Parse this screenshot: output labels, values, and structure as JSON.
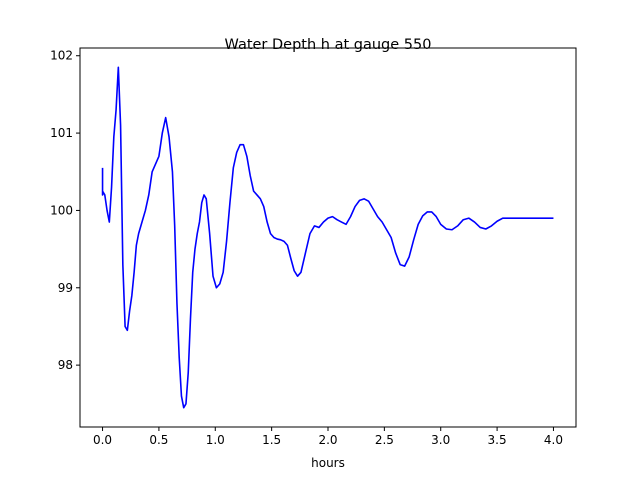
{
  "chart_data": {
    "type": "line",
    "title": "Water Depth h at gauge 550",
    "xlabel": "hours",
    "ylabel": "",
    "xlim": [
      -0.2,
      4.2
    ],
    "ylim": [
      97.2,
      102.1
    ],
    "xticks": [
      0.0,
      0.5,
      1.0,
      1.5,
      2.0,
      2.5,
      3.0,
      3.5,
      4.0
    ],
    "xtick_labels": [
      "0.0",
      "0.5",
      "1.0",
      "1.5",
      "2.0",
      "2.5",
      "3.0",
      "3.5",
      "4.0"
    ],
    "yticks": [
      98,
      99,
      100,
      101,
      102
    ],
    "ytick_labels": [
      "98",
      "99",
      "100",
      "101",
      "102"
    ],
    "grid": false,
    "series": [
      {
        "color": "#0000ff",
        "x": [
          0.0,
          0.0,
          0.0,
          0.02,
          0.04,
          0.06,
          0.08,
          0.1,
          0.12,
          0.14,
          0.16,
          0.18,
          0.2,
          0.22,
          0.24,
          0.26,
          0.28,
          0.3,
          0.32,
          0.35,
          0.38,
          0.41,
          0.44,
          0.47,
          0.5,
          0.53,
          0.56,
          0.59,
          0.62,
          0.64,
          0.66,
          0.68,
          0.7,
          0.72,
          0.74,
          0.76,
          0.78,
          0.8,
          0.82,
          0.84,
          0.86,
          0.88,
          0.9,
          0.92,
          0.95,
          0.98,
          1.01,
          1.04,
          1.07,
          1.1,
          1.13,
          1.16,
          1.19,
          1.22,
          1.25,
          1.28,
          1.31,
          1.34,
          1.37,
          1.4,
          1.43,
          1.46,
          1.49,
          1.52,
          1.55,
          1.58,
          1.61,
          1.64,
          1.67,
          1.7,
          1.73,
          1.76,
          1.8,
          1.84,
          1.88,
          1.92,
          1.96,
          2.0,
          2.04,
          2.08,
          2.12,
          2.16,
          2.2,
          2.24,
          2.28,
          2.32,
          2.36,
          2.4,
          2.44,
          2.48,
          2.52,
          2.56,
          2.6,
          2.64,
          2.68,
          2.72,
          2.76,
          2.8,
          2.84,
          2.88,
          2.92,
          2.96,
          3.0,
          3.05,
          3.1,
          3.15,
          3.2,
          3.25,
          3.3,
          3.35,
          3.4,
          3.45,
          3.5,
          3.55,
          3.6,
          3.65,
          3.7,
          3.75,
          3.8,
          3.85,
          3.9,
          3.95,
          4.0
        ],
        "y": [
          100.55,
          100.2,
          100.25,
          100.2,
          100.0,
          99.85,
          100.3,
          100.95,
          101.3,
          101.85,
          101.1,
          99.3,
          98.5,
          98.45,
          98.7,
          98.9,
          99.2,
          99.55,
          99.7,
          99.85,
          100.0,
          100.2,
          100.5,
          100.6,
          100.7,
          101.0,
          101.2,
          100.95,
          100.5,
          99.8,
          98.8,
          98.1,
          97.6,
          97.45,
          97.5,
          97.9,
          98.6,
          99.2,
          99.5,
          99.7,
          99.85,
          100.1,
          100.2,
          100.15,
          99.7,
          99.15,
          99.0,
          99.05,
          99.2,
          99.6,
          100.1,
          100.55,
          100.75,
          100.85,
          100.85,
          100.7,
          100.45,
          100.25,
          100.2,
          100.15,
          100.05,
          99.85,
          99.7,
          99.65,
          99.63,
          99.62,
          99.6,
          99.55,
          99.38,
          99.22,
          99.15,
          99.2,
          99.45,
          99.7,
          99.8,
          99.78,
          99.85,
          99.9,
          99.92,
          99.88,
          99.85,
          99.82,
          99.92,
          100.05,
          100.13,
          100.15,
          100.12,
          100.02,
          99.92,
          99.85,
          99.75,
          99.65,
          99.45,
          99.3,
          99.28,
          99.4,
          99.62,
          99.82,
          99.93,
          99.98,
          99.98,
          99.92,
          99.82,
          99.76,
          99.75,
          99.8,
          99.88,
          99.9,
          99.85,
          99.78,
          99.76,
          99.8,
          99.86,
          99.9,
          99.9,
          99.9,
          99.9,
          99.9,
          99.9,
          99.9,
          99.9,
          99.9,
          99.9
        ]
      }
    ]
  }
}
